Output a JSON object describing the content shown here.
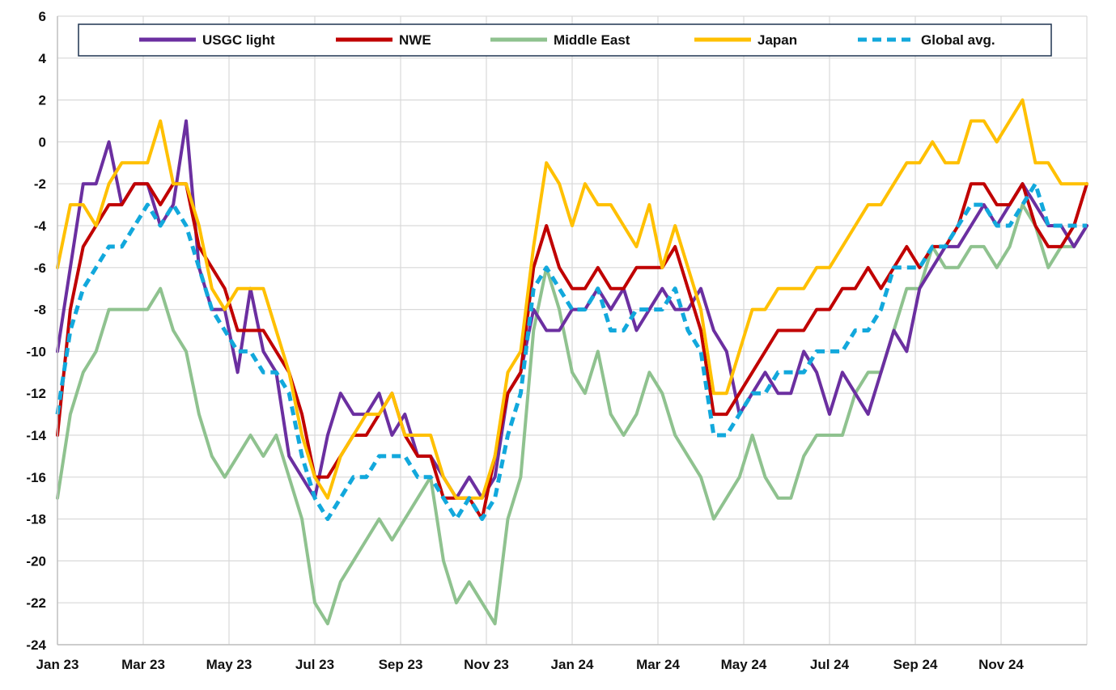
{
  "chart_data": {
    "type": "line",
    "title": "",
    "xlabel": "",
    "ylabel": "",
    "ylim": [
      -24,
      6
    ],
    "yticks": [
      6,
      4,
      2,
      0,
      -2,
      -4,
      -6,
      -8,
      -10,
      -12,
      -14,
      -16,
      -18,
      -20,
      -22,
      -24
    ],
    "xlim": [
      0,
      24
    ],
    "x_tick_labels": [
      "Jan 23",
      "Mar 23",
      "May 23",
      "Jul 23",
      "Sep 23",
      "Nov 23",
      "Jan 24",
      "Mar 24",
      "May 24",
      "Jul 24",
      "Sep 24",
      "Nov 24"
    ],
    "x_unit": "months since Jan 23",
    "grid": true,
    "legend_position": "top",
    "series": [
      {
        "name": "USGC light",
        "color": "#6b2fa0",
        "dashed": false,
        "x": [
          0,
          0.3,
          0.6,
          0.9,
          1.2,
          1.5,
          1.8,
          2.1,
          2.4,
          2.7,
          3.0,
          3.3,
          3.6,
          3.9,
          4.2,
          4.5,
          4.8,
          5.1,
          5.4,
          5.7,
          6.0,
          6.3,
          6.6,
          6.9,
          7.2,
          7.5,
          7.8,
          8.1,
          8.4,
          8.7,
          9.0,
          9.3,
          9.6,
          9.9,
          10.2,
          10.5,
          10.8,
          11.1,
          11.4,
          11.7,
          12.0,
          12.3,
          12.6,
          12.9,
          13.2,
          13.5,
          13.8,
          14.1,
          14.4,
          14.7,
          15.0,
          15.3,
          15.6,
          15.9,
          16.2,
          16.5,
          16.8,
          17.1,
          17.4,
          17.7,
          18.0,
          18.3,
          18.6,
          18.9,
          19.2,
          19.5,
          19.8,
          20.1,
          20.4,
          20.7,
          21.0,
          21.3,
          21.6,
          21.9,
          22.2,
          22.5,
          22.8,
          23.1,
          23.4,
          23.7,
          24.0
        ],
        "values": [
          -10,
          -6,
          -2,
          -2,
          0,
          -3,
          -2,
          -2,
          -4,
          -3,
          1,
          -6,
          -8,
          -8,
          -11,
          -7,
          -10,
          -11,
          -15,
          -16,
          -17,
          -14,
          -12,
          -13,
          -13,
          -12,
          -14,
          -13,
          -15,
          -15,
          -16,
          -17,
          -16,
          -17,
          -16,
          -12,
          -11,
          -8,
          -9,
          -9,
          -8,
          -8,
          -7,
          -8,
          -7,
          -9,
          -8,
          -7,
          -8,
          -8,
          -7,
          -9,
          -10,
          -13,
          -12,
          -11,
          -12,
          -12,
          -10,
          -11,
          -13,
          -11,
          -12,
          -13,
          -11,
          -9,
          -10,
          -7,
          -6,
          -5,
          -5,
          -4,
          -3,
          -4,
          -3,
          -2,
          -3,
          -4,
          -4,
          -5,
          -4
        ]
      },
      {
        "name": "NWE",
        "color": "#c00000",
        "dashed": false,
        "x": [
          0,
          0.3,
          0.6,
          0.9,
          1.2,
          1.5,
          1.8,
          2.1,
          2.4,
          2.7,
          3.0,
          3.3,
          3.6,
          3.9,
          4.2,
          4.5,
          4.8,
          5.1,
          5.4,
          5.7,
          6.0,
          6.3,
          6.6,
          6.9,
          7.2,
          7.5,
          7.8,
          8.1,
          8.4,
          8.7,
          9.0,
          9.3,
          9.6,
          9.9,
          10.2,
          10.5,
          10.8,
          11.1,
          11.4,
          11.7,
          12.0,
          12.3,
          12.6,
          12.9,
          13.2,
          13.5,
          13.8,
          14.1,
          14.4,
          14.7,
          15.0,
          15.3,
          15.6,
          15.9,
          16.2,
          16.5,
          16.8,
          17.1,
          17.4,
          17.7,
          18.0,
          18.3,
          18.6,
          18.9,
          19.2,
          19.5,
          19.8,
          20.1,
          20.4,
          20.7,
          21.0,
          21.3,
          21.6,
          21.9,
          22.2,
          22.5,
          22.8,
          23.1,
          23.4,
          23.7,
          24.0
        ],
        "values": [
          -14,
          -8,
          -5,
          -4,
          -3,
          -3,
          -2,
          -2,
          -3,
          -2,
          -2,
          -5,
          -6,
          -7,
          -9,
          -9,
          -9,
          -10,
          -11,
          -13,
          -16,
          -16,
          -15,
          -14,
          -14,
          -13,
          -12,
          -14,
          -15,
          -15,
          -17,
          -17,
          -17,
          -18,
          -15,
          -12,
          -11,
          -6,
          -4,
          -6,
          -7,
          -7,
          -6,
          -7,
          -7,
          -6,
          -6,
          -6,
          -5,
          -7,
          -9,
          -13,
          -13,
          -12,
          -11,
          -10,
          -9,
          -9,
          -9,
          -8,
          -8,
          -7,
          -7,
          -6,
          -7,
          -6,
          -5,
          -6,
          -5,
          -5,
          -4,
          -2,
          -2,
          -3,
          -3,
          -2,
          -4,
          -5,
          -5,
          -4,
          -2
        ]
      },
      {
        "name": "Middle East",
        "color": "#8fc28f",
        "dashed": false,
        "x": [
          0,
          0.3,
          0.6,
          0.9,
          1.2,
          1.5,
          1.8,
          2.1,
          2.4,
          2.7,
          3.0,
          3.3,
          3.6,
          3.9,
          4.2,
          4.5,
          4.8,
          5.1,
          5.4,
          5.7,
          6.0,
          6.3,
          6.6,
          6.9,
          7.2,
          7.5,
          7.8,
          8.1,
          8.4,
          8.7,
          9.0,
          9.3,
          9.6,
          9.9,
          10.2,
          10.5,
          10.8,
          11.1,
          11.4,
          11.7,
          12.0,
          12.3,
          12.6,
          12.9,
          13.2,
          13.5,
          13.8,
          14.1,
          14.4,
          14.7,
          15.0,
          15.3,
          15.6,
          15.9,
          16.2,
          16.5,
          16.8,
          17.1,
          17.4,
          17.7,
          18.0,
          18.3,
          18.6,
          18.9,
          19.2,
          19.5,
          19.8,
          20.1,
          20.4,
          20.7,
          21.0,
          21.3,
          21.6,
          21.9,
          22.2,
          22.5,
          22.8,
          23.1,
          23.4,
          23.7,
          24.0
        ],
        "values": [
          -17,
          -13,
          -11,
          -10,
          -8,
          -8,
          -8,
          -8,
          -7,
          -9,
          -10,
          -13,
          -15,
          -16,
          -15,
          -14,
          -15,
          -14,
          -16,
          -18,
          -22,
          -23,
          -21,
          -20,
          -19,
          -18,
          -19,
          -18,
          -17,
          -16,
          -20,
          -22,
          -21,
          -22,
          -23,
          -18,
          -16,
          -9,
          -6,
          -8,
          -11,
          -12,
          -10,
          -13,
          -14,
          -13,
          -11,
          -12,
          -14,
          -15,
          -16,
          -18,
          -17,
          -16,
          -14,
          -16,
          -17,
          -17,
          -15,
          -14,
          -14,
          -14,
          -12,
          -11,
          -11,
          -9,
          -7,
          -7,
          -5,
          -6,
          -6,
          -5,
          -5,
          -6,
          -5,
          -3,
          -4,
          -6,
          -5,
          -5,
          -4
        ]
      },
      {
        "name": "Japan",
        "color": "#ffc000",
        "dashed": false,
        "x": [
          0,
          0.3,
          0.6,
          0.9,
          1.2,
          1.5,
          1.8,
          2.1,
          2.4,
          2.7,
          3.0,
          3.3,
          3.6,
          3.9,
          4.2,
          4.5,
          4.8,
          5.1,
          5.4,
          5.7,
          6.0,
          6.3,
          6.6,
          6.9,
          7.2,
          7.5,
          7.8,
          8.1,
          8.4,
          8.7,
          9.0,
          9.3,
          9.6,
          9.9,
          10.2,
          10.5,
          10.8,
          11.1,
          11.4,
          11.7,
          12.0,
          12.3,
          12.6,
          12.9,
          13.2,
          13.5,
          13.8,
          14.1,
          14.4,
          14.7,
          15.0,
          15.3,
          15.6,
          15.9,
          16.2,
          16.5,
          16.8,
          17.1,
          17.4,
          17.7,
          18.0,
          18.3,
          18.6,
          18.9,
          19.2,
          19.5,
          19.8,
          20.1,
          20.4,
          20.7,
          21.0,
          21.3,
          21.6,
          21.9,
          22.2,
          22.5,
          22.8,
          23.1,
          23.4,
          23.7,
          24.0
        ],
        "values": [
          -6,
          -3,
          -3,
          -4,
          -2,
          -1,
          -1,
          -1,
          1,
          -2,
          -2,
          -4,
          -7,
          -8,
          -7,
          -7,
          -7,
          -9,
          -11,
          -14,
          -16,
          -17,
          -15,
          -14,
          -13,
          -13,
          -12,
          -14,
          -14,
          -14,
          -16,
          -17,
          -17,
          -17,
          -15,
          -11,
          -10,
          -5,
          -1,
          -2,
          -4,
          -2,
          -3,
          -3,
          -4,
          -5,
          -3,
          -6,
          -4,
          -6,
          -8,
          -12,
          -12,
          -10,
          -8,
          -8,
          -7,
          -7,
          -7,
          -6,
          -6,
          -5,
          -4,
          -3,
          -3,
          -2,
          -1,
          -1,
          0,
          -1,
          -1,
          1,
          1,
          0,
          1,
          2,
          -1,
          -1,
          -2,
          -2,
          -2
        ]
      },
      {
        "name": "Global avg.",
        "color": "#12a8dc",
        "dashed": true,
        "x": [
          0,
          0.3,
          0.6,
          0.9,
          1.2,
          1.5,
          1.8,
          2.1,
          2.4,
          2.7,
          3.0,
          3.3,
          3.6,
          3.9,
          4.2,
          4.5,
          4.8,
          5.1,
          5.4,
          5.7,
          6.0,
          6.3,
          6.6,
          6.9,
          7.2,
          7.5,
          7.8,
          8.1,
          8.4,
          8.7,
          9.0,
          9.3,
          9.6,
          9.9,
          10.2,
          10.5,
          10.8,
          11.1,
          11.4,
          11.7,
          12.0,
          12.3,
          12.6,
          12.9,
          13.2,
          13.5,
          13.8,
          14.1,
          14.4,
          14.7,
          15.0,
          15.3,
          15.6,
          15.9,
          16.2,
          16.5,
          16.8,
          17.1,
          17.4,
          17.7,
          18.0,
          18.3,
          18.6,
          18.9,
          19.2,
          19.5,
          19.8,
          20.1,
          20.4,
          20.7,
          21.0,
          21.3,
          21.6,
          21.9,
          22.2,
          22.5,
          22.8,
          23.1,
          23.4,
          23.7,
          24.0
        ],
        "values": [
          -13,
          -9,
          -7,
          -6,
          -5,
          -5,
          -4,
          -3,
          -4,
          -3,
          -4,
          -6,
          -8,
          -9,
          -10,
          -10,
          -11,
          -11,
          -12,
          -15,
          -17,
          -18,
          -17,
          -16,
          -16,
          -15,
          -15,
          -15,
          -16,
          -16,
          -17,
          -18,
          -17,
          -18,
          -17,
          -14,
          -12,
          -7,
          -6,
          -7,
          -8,
          -8,
          -7,
          -9,
          -9,
          -8,
          -8,
          -8,
          -7,
          -9,
          -10,
          -14,
          -14,
          -13,
          -12,
          -12,
          -11,
          -11,
          -11,
          -10,
          -10,
          -10,
          -9,
          -9,
          -8,
          -6,
          -6,
          -6,
          -5,
          -5,
          -4,
          -3,
          -3,
          -4,
          -4,
          -3,
          -2,
          -4,
          -4,
          -4,
          -4
        ]
      }
    ]
  }
}
